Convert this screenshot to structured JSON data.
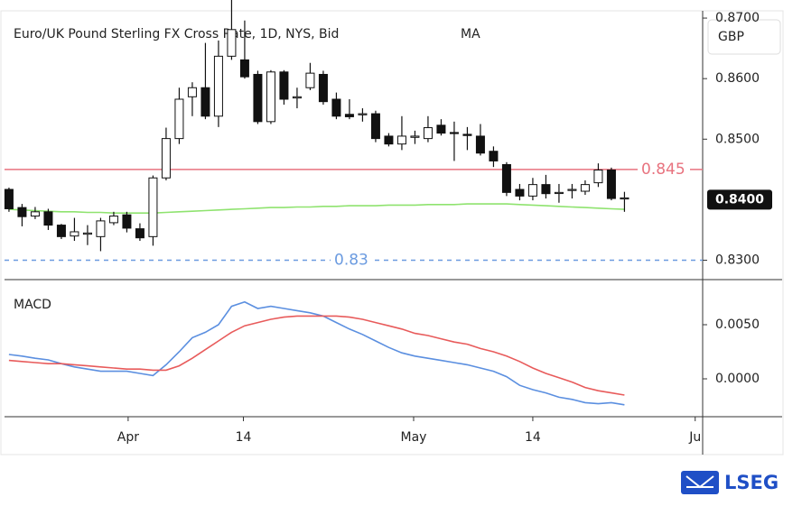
{
  "chart_data": [
    {
      "type": "candlestick",
      "title": "Euro/UK Pound Sterling FX Cross Rate, 1D, NYS, Bid",
      "unit": "GBP",
      "categories": [
        null,
        null,
        null,
        null,
        null,
        null,
        null,
        null,
        null,
        null,
        null,
        null,
        null,
        null,
        null,
        null,
        null,
        null,
        null,
        null,
        null,
        null,
        null,
        null,
        null,
        null,
        null,
        null,
        null,
        null,
        null,
        null,
        null,
        null,
        null,
        null,
        null,
        null,
        null,
        null,
        null,
        null,
        null,
        null,
        null,
        null,
        null,
        null
      ],
      "open": [
        0.8417,
        0.8387,
        0.8373,
        0.838,
        0.8358,
        0.834,
        0.8343,
        0.8339,
        0.8362,
        0.8375,
        0.8352,
        0.8339,
        0.8436,
        0.8501,
        0.857,
        0.8585,
        0.8538,
        0.8637,
        0.8631,
        0.8607,
        0.8529,
        0.8611,
        0.8568,
        0.8585,
        0.8607,
        0.8566,
        0.8541,
        0.8541,
        0.8542,
        0.8505,
        0.8492,
        0.8503,
        0.8501,
        0.8523,
        0.8511,
        0.8508,
        0.8505,
        0.848,
        0.8458,
        0.8417,
        0.8406,
        0.8425,
        0.8411,
        0.8416,
        0.8414,
        0.8428,
        0.8449,
        0.8402
      ],
      "high": [
        0.842,
        0.8393,
        0.8388,
        0.8385,
        0.836,
        0.837,
        0.8358,
        0.837,
        0.838,
        0.838,
        0.8361,
        0.844,
        0.8519,
        0.8585,
        0.8594,
        0.8659,
        0.8663,
        0.8737,
        0.8696,
        0.8613,
        0.8614,
        0.8614,
        0.8585,
        0.8626,
        0.8613,
        0.8577,
        0.8566,
        0.8551,
        0.8547,
        0.851,
        0.8538,
        0.8514,
        0.8538,
        0.8533,
        0.8529,
        0.852,
        0.8525,
        0.8488,
        0.8462,
        0.8426,
        0.8436,
        0.8441,
        0.8426,
        0.8426,
        0.8432,
        0.846,
        0.8453,
        0.8413
      ],
      "low": [
        0.838,
        0.8356,
        0.8368,
        0.835,
        0.8335,
        0.8332,
        0.8325,
        0.8315,
        0.8358,
        0.8346,
        0.8332,
        0.8324,
        0.8432,
        0.8492,
        0.8538,
        0.8533,
        0.852,
        0.8631,
        0.86,
        0.8525,
        0.8525,
        0.8557,
        0.8551,
        0.8581,
        0.8557,
        0.8533,
        0.8533,
        0.8529,
        0.8495,
        0.8488,
        0.8482,
        0.8492,
        0.8495,
        0.8506,
        0.8464,
        0.8482,
        0.8473,
        0.8454,
        0.8406,
        0.8399,
        0.8399,
        0.8402,
        0.8395,
        0.8402,
        0.8408,
        0.8421,
        0.8399,
        0.838
      ],
      "close": [
        0.8385,
        0.8372,
        0.838,
        0.8358,
        0.8339,
        0.8347,
        0.8345,
        0.8365,
        0.8373,
        0.8353,
        0.8337,
        0.8436,
        0.8501,
        0.8566,
        0.8585,
        0.8538,
        0.8637,
        0.8681,
        0.8603,
        0.8529,
        0.8611,
        0.8566,
        0.857,
        0.8609,
        0.8562,
        0.8538,
        0.8537,
        0.8542,
        0.8501,
        0.8492,
        0.8505,
        0.8505,
        0.8519,
        0.851,
        0.851,
        0.8506,
        0.8477,
        0.8464,
        0.8412,
        0.8406,
        0.8425,
        0.841,
        0.8412,
        0.8417,
        0.8425,
        0.8449,
        0.8402,
        0.8403
      ],
      "up_color": "#ffffff",
      "down_color": "#111111",
      "series": [
        {
          "name": "MA",
          "color": "#8fe36f",
          "values": [
            0.8384,
            0.8383,
            0.8382,
            0.8381,
            0.838,
            0.838,
            0.8379,
            0.8379,
            0.8378,
            0.8378,
            0.8378,
            0.8378,
            0.8379,
            0.838,
            0.8381,
            0.8382,
            0.8383,
            0.8384,
            0.8385,
            0.8386,
            0.8387,
            0.8387,
            0.8388,
            0.8388,
            0.8389,
            0.8389,
            0.839,
            0.839,
            0.839,
            0.8391,
            0.8391,
            0.8391,
            0.8392,
            0.8392,
            0.8392,
            0.8393,
            0.8393,
            0.8393,
            0.8393,
            0.8392,
            0.8391,
            0.839,
            0.8389,
            0.8388,
            0.8387,
            0.8386,
            0.8385,
            0.8384
          ]
        }
      ],
      "hlines": [
        {
          "value": 0.845,
          "label": "0.845",
          "color": "#e8737f",
          "dashed": false
        },
        {
          "value": 0.83,
          "label": "0.83",
          "color": "#6b9be0",
          "dashed": true
        }
      ],
      "price_marker": {
        "value": 0.84,
        "label": "0.8400"
      },
      "ylim": [
        0.8268,
        0.8712
      ],
      "yticks": [
        {
          "value": 0.87,
          "label": "0.8700"
        },
        {
          "value": 0.86,
          "label": "0.8600"
        },
        {
          "value": 0.85,
          "label": "0.8500"
        },
        {
          "value": 0.83,
          "label": "0.8300"
        }
      ],
      "xlim": [
        -0.34,
        52.97
      ],
      "xticks": [
        {
          "value": 9.1,
          "label": "Apr"
        },
        {
          "value": 17.9,
          "label": "14"
        },
        {
          "value": 30.9,
          "label": "May"
        },
        {
          "value": 40.0,
          "label": "14"
        },
        {
          "value": 52.4,
          "label": "Ju"
        }
      ]
    },
    {
      "type": "line",
      "title": "MACD",
      "series": [
        {
          "color": "#5b8fe0",
          "values": [
            0.00225,
            0.0021,
            0.0019,
            0.00175,
            0.0014,
            0.0011,
            0.0009,
            0.0007,
            0.0007,
            0.0007,
            0.0005,
            0.0003,
            0.0013,
            0.0025,
            0.0038,
            0.0043,
            0.005,
            0.0067,
            0.0071,
            0.0065,
            0.0067,
            0.0065,
            0.0063,
            0.0061,
            0.0058,
            0.0052,
            0.0046,
            0.0041,
            0.0035,
            0.0029,
            0.0024,
            0.0021,
            0.0019,
            0.0017,
            0.0015,
            0.0013,
            0.001,
            0.0007,
            0.0002,
            -0.0006,
            -0.001,
            -0.0013,
            -0.0017,
            -0.0019,
            -0.0022,
            -0.0023,
            -0.0022,
            -0.0024
          ]
        },
        {
          "color": "#e85b5b",
          "values": [
            0.0017,
            0.0016,
            0.0015,
            0.0014,
            0.0014,
            0.0013,
            0.0012,
            0.0011,
            0.001,
            0.0009,
            0.0009,
            0.0008,
            0.0008,
            0.0012,
            0.0019,
            0.0027,
            0.0035,
            0.0043,
            0.0049,
            0.0052,
            0.0055,
            0.0057,
            0.0058,
            0.0058,
            0.0058,
            0.0058,
            0.0057,
            0.0055,
            0.0052,
            0.0049,
            0.0046,
            0.0042,
            0.004,
            0.0037,
            0.0034,
            0.0032,
            0.0028,
            0.0025,
            0.0021,
            0.0016,
            0.001,
            0.0005,
            0.0001,
            -0.0003,
            -0.0008,
            -0.0011,
            -0.0013,
            -0.0015
          ]
        }
      ],
      "ylim": [
        -0.0035,
        0.009
      ],
      "yticks": [
        {
          "value": 0.005,
          "label": "0.0050"
        },
        {
          "value": 0,
          "label": "0.0000"
        }
      ]
    }
  ],
  "footer": {
    "logo": "LSEG"
  }
}
